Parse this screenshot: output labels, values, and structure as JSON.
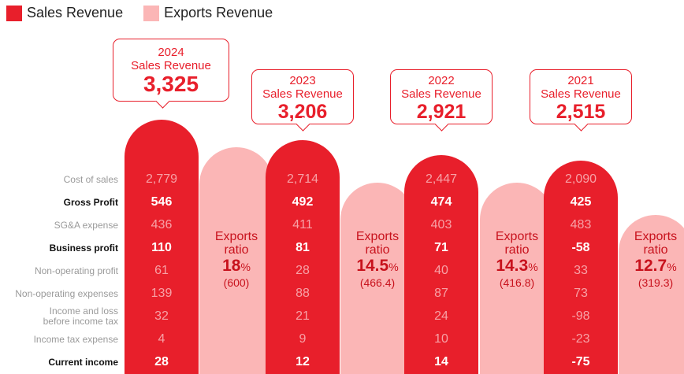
{
  "colors": {
    "sales": "#e81f2b",
    "exports": "#fbb6b6",
    "dim_text": "#f7a1a6"
  },
  "legend": [
    {
      "label": "Sales Revenue",
      "color": "#e81f2b"
    },
    {
      "label": "Exports Revenue",
      "color": "#fbb6b6"
    }
  ],
  "row_labels": [
    "Cost of sales",
    "Gross Profit",
    "SG&A expense",
    "Business profit",
    "Non-operating profit",
    "Non-operating expenses",
    "Income and loss\nbefore income tax",
    "Income tax expense",
    "Current income"
  ],
  "years": [
    {
      "year": "2024",
      "callout_year": "2024",
      "callout_label": "Sales Revenue",
      "sales_revenue": "3,325",
      "sales_value": 3325,
      "rows": [
        "2,779",
        "546",
        "436",
        "110",
        "61",
        "139",
        "32",
        "4",
        "28"
      ],
      "exports_title_1": "Exports",
      "exports_title_2": "ratio",
      "exports_ratio": "18",
      "exports_pct_sign": "%",
      "exports_amount": "(600)",
      "exports_value": 600
    },
    {
      "year": "2023",
      "callout_year": "2023",
      "callout_label": "Sales Revenue",
      "sales_revenue": "3,206",
      "sales_value": 3206,
      "rows": [
        "2,714",
        "492",
        "411",
        "81",
        "28",
        "88",
        "21",
        "9",
        "12"
      ],
      "exports_title_1": "Exports",
      "exports_title_2": "ratio",
      "exports_ratio": "14.5",
      "exports_pct_sign": "%",
      "exports_amount": "(466.4)",
      "exports_value": 466.4
    },
    {
      "year": "2022",
      "callout_year": "2022",
      "callout_label": "Sales Revenue",
      "sales_revenue": "2,921",
      "sales_value": 2921,
      "rows": [
        "2,447",
        "474",
        "403",
        "71",
        "40",
        "87",
        "24",
        "10",
        "14"
      ],
      "exports_title_1": "Exports",
      "exports_title_2": "ratio",
      "exports_ratio": "14.3",
      "exports_pct_sign": "%",
      "exports_amount": "(416.8)",
      "exports_value": 416.8
    },
    {
      "year": "2021",
      "callout_year": "2021",
      "callout_label": "Sales Revenue",
      "sales_revenue": "2,515",
      "sales_value": 2515,
      "rows": [
        "2,090",
        "425",
        "483",
        "-58",
        "33",
        "73",
        "-98",
        "-23",
        "-75"
      ],
      "exports_title_1": "Exports",
      "exports_title_2": "ratio",
      "exports_ratio": "12.7",
      "exports_pct_sign": "%",
      "exports_amount": "(319.3)",
      "exports_value": 319.3
    }
  ],
  "chart_data": {
    "type": "bar",
    "categories": [
      "2024",
      "2023",
      "2022",
      "2021"
    ],
    "series": [
      {
        "name": "Sales Revenue",
        "values": [
          3325,
          3206,
          2921,
          2515
        ]
      },
      {
        "name": "Exports Revenue",
        "values": [
          600,
          466.4,
          416.8,
          319.3
        ]
      }
    ],
    "exports_ratio_pct": [
      18,
      14.5,
      14.3,
      12.7
    ],
    "title": "",
    "xlabel": "",
    "ylabel": "",
    "legend_position": "top-left"
  }
}
